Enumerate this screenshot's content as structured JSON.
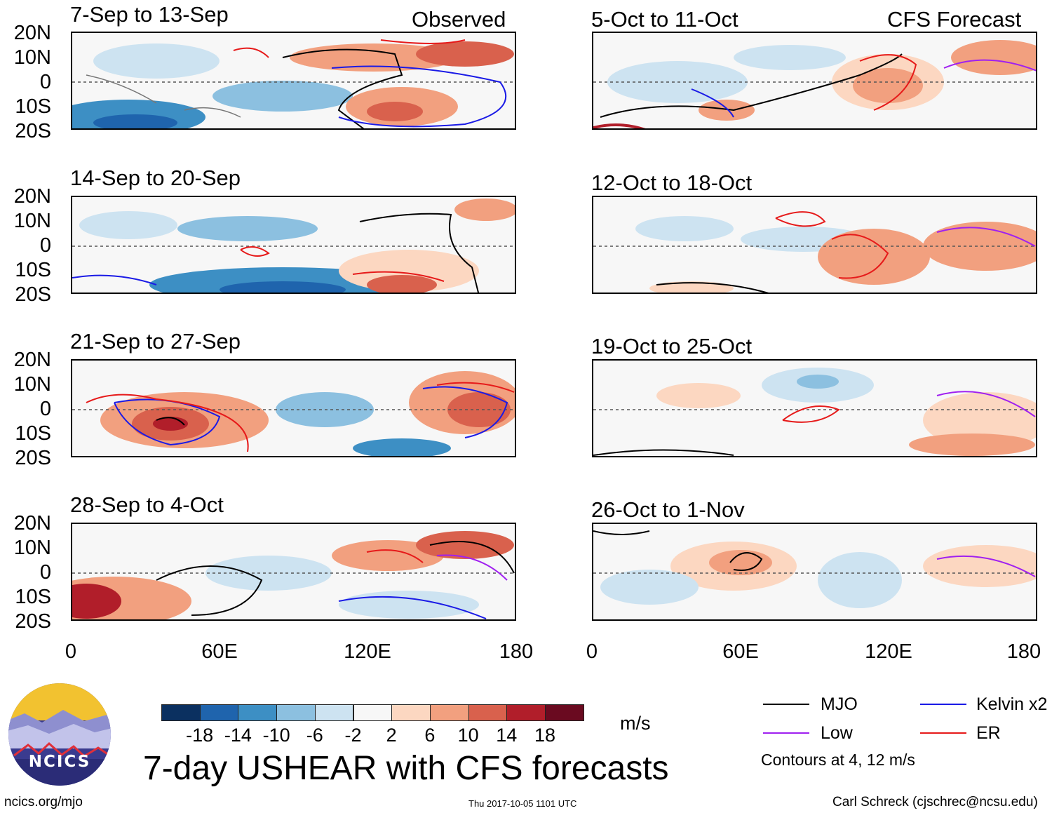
{
  "panels_left": [
    {
      "title": "7-Sep to 13-Sep",
      "tag": "Observed"
    },
    {
      "title": "14-Sep to 20-Sep",
      "tag": ""
    },
    {
      "title": "21-Sep to 27-Sep",
      "tag": ""
    },
    {
      "title": "28-Sep to 4-Oct",
      "tag": ""
    }
  ],
  "panels_right": [
    {
      "title": "5-Oct to 11-Oct",
      "tag": "CFS Forecast"
    },
    {
      "title": "12-Oct to 18-Oct",
      "tag": ""
    },
    {
      "title": "19-Oct to 25-Oct",
      "tag": ""
    },
    {
      "title": "26-Oct to 1-Nov",
      "tag": ""
    }
  ],
  "lat_labels": [
    "20N",
    "10N",
    "0",
    "10S",
    "20S"
  ],
  "lon_labels": [
    "0",
    "60E",
    "120E",
    "180"
  ],
  "colorbar": {
    "colors": [
      "#0b3060",
      "#1f64ad",
      "#3d8fc4",
      "#8cc0e0",
      "#cde3f1",
      "#f7f7f7",
      "#fcd7c1",
      "#f2a07f",
      "#d9614d",
      "#b11e2a",
      "#6a0a20"
    ],
    "labels": [
      "-18",
      "-14",
      "-10",
      "-6",
      "-2",
      "2",
      "6",
      "10",
      "14",
      "18"
    ],
    "units": "m/s"
  },
  "legend": {
    "items": [
      {
        "label": "MJO",
        "color": "#000000"
      },
      {
        "label": "Kelvin x2",
        "color": "#1a1ae6"
      },
      {
        "label": "Low",
        "color": "#a020f0"
      },
      {
        "label": "ER",
        "color": "#e61a1a"
      }
    ],
    "note": "Contours at 4, 12 m/s"
  },
  "title": "7-day USHEAR with CFS forecasts",
  "logo_text": "NCICS",
  "footer": {
    "left": "ncics.org/mjo",
    "center": "Thu 2017-10-05 1101 UTC",
    "right": "Carl Schreck (cjschrec@ncsu.edu)"
  }
}
